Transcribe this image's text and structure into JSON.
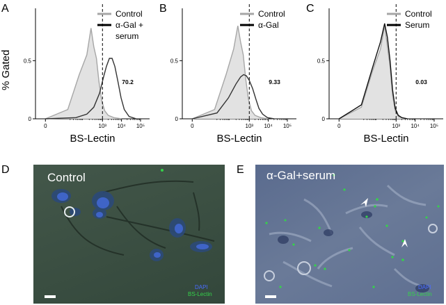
{
  "figure": {
    "panel_letters": [
      "A",
      "B",
      "C",
      "D",
      "E"
    ],
    "y_label": "% Gated"
  },
  "chart_data": [
    {
      "type": "area",
      "panel": "A",
      "xlabel": "BS-Lectin",
      "ylabel": "% Gated",
      "x_scale": "log",
      "xlim": [
        0.3,
        300000
      ],
      "ylim": [
        0,
        0.95
      ],
      "x_ticks": [
        "0",
        "10³",
        "10⁴",
        "10⁵"
      ],
      "y_ticks": [
        "0",
        "0.5"
      ],
      "gate_x": 1000,
      "gate_value_label": "70.2",
      "legend": [
        "Control",
        "α-Gal +",
        "serum"
      ],
      "series": [
        {
          "name": "Control",
          "color": "#a6a6a6",
          "filled": true,
          "x": [
            1,
            15,
            60,
            150,
            250,
            350,
            480,
            650,
            900,
            1300,
            2000,
            4000,
            10000
          ],
          "y": [
            0.0,
            0.08,
            0.38,
            0.55,
            0.78,
            0.62,
            0.52,
            0.32,
            0.16,
            0.07,
            0.03,
            0.01,
            0.0
          ]
        },
        {
          "name": "α-Gal + serum",
          "color": "#333333",
          "filled": false,
          "x": [
            1,
            40,
            150,
            350,
            700,
            1100,
            1600,
            2300,
            3200,
            4500,
            6500,
            9500,
            14000,
            25000,
            60000
          ],
          "y": [
            0.0,
            0.01,
            0.04,
            0.1,
            0.22,
            0.35,
            0.45,
            0.52,
            0.52,
            0.45,
            0.32,
            0.18,
            0.08,
            0.02,
            0.0
          ]
        }
      ]
    },
    {
      "type": "area",
      "panel": "B",
      "xlabel": "BS-Lectin",
      "x_scale": "log",
      "xlim": [
        0.3,
        300000
      ],
      "ylim": [
        0,
        0.95
      ],
      "x_ticks": [
        "0",
        "10³",
        "10⁴",
        "10⁵"
      ],
      "y_ticks": [
        "0",
        "0.5"
      ],
      "gate_x": 1000,
      "gate_value_label": "9.33",
      "legend": [
        "Control",
        "α-Gal"
      ],
      "series": [
        {
          "name": "Control",
          "color": "#a6a6a6",
          "filled": true,
          "x": [
            1,
            15,
            60,
            150,
            250,
            350,
            480,
            650,
            900,
            1300,
            2000,
            4000,
            10000
          ],
          "y": [
            0.0,
            0.08,
            0.38,
            0.6,
            0.8,
            0.66,
            0.55,
            0.34,
            0.17,
            0.07,
            0.03,
            0.01,
            0.0
          ]
        },
        {
          "name": "α-Gal",
          "color": "#333333",
          "filled": false,
          "x": [
            1,
            20,
            80,
            200,
            350,
            500,
            700,
            1000,
            1500,
            2200,
            3200,
            5000,
            9000,
            20000
          ],
          "y": [
            0.0,
            0.05,
            0.18,
            0.3,
            0.36,
            0.38,
            0.37,
            0.33,
            0.26,
            0.17,
            0.09,
            0.04,
            0.01,
            0.0
          ]
        }
      ]
    },
    {
      "type": "area",
      "panel": "C",
      "xlabel": "BS-Lectin",
      "x_scale": "log",
      "xlim": [
        0.3,
        300000
      ],
      "ylim": [
        0,
        0.95
      ],
      "x_ticks": [
        "0",
        "10³",
        "10⁴",
        "10⁵"
      ],
      "y_ticks": [
        "0",
        "0.5"
      ],
      "gate_x": 1000,
      "gate_value_label": "0.03",
      "legend": [
        "Control",
        "Serum"
      ],
      "series": [
        {
          "name": "Control",
          "color": "#a6a6a6",
          "filled": true,
          "x": [
            1,
            15,
            60,
            150,
            250,
            350,
            480,
            650,
            900,
            1300,
            2000,
            4000
          ],
          "y": [
            0.0,
            0.1,
            0.42,
            0.6,
            0.8,
            0.62,
            0.45,
            0.2,
            0.07,
            0.02,
            0.01,
            0.0
          ]
        },
        {
          "name": "Serum",
          "color": "#111111",
          "filled": false,
          "x": [
            1,
            15,
            60,
            150,
            250,
            350,
            480,
            650,
            900,
            1300,
            2000,
            4000
          ],
          "y": [
            0.0,
            0.12,
            0.45,
            0.66,
            0.82,
            0.7,
            0.5,
            0.25,
            0.09,
            0.03,
            0.01,
            0.0
          ]
        }
      ]
    }
  ],
  "micrographs": [
    {
      "panel": "D",
      "title": "Control",
      "dapi_label": "DAPI",
      "lectin_label": "BS-Lectin"
    },
    {
      "panel": "E",
      "title": "α-Gal+serum",
      "dapi_label": "DAPI",
      "lectin_label": "BS-Lectin"
    }
  ]
}
